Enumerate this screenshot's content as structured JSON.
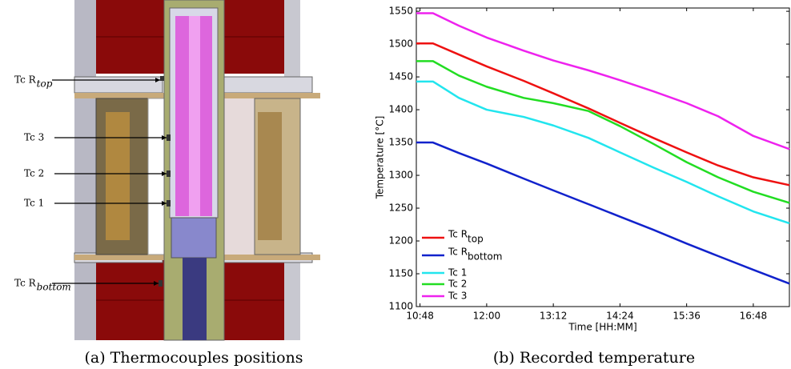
{
  "panel_a": {
    "caption": "(a) Thermocouples positions",
    "labels": [
      {
        "text": "Tc R",
        "sub": "top"
      },
      {
        "text": "Tc 3"
      },
      {
        "text": "Tc 2"
      },
      {
        "text": "Tc 1"
      },
      {
        "text": "Tc R",
        "sub": "bottom"
      }
    ]
  },
  "chart_data": {
    "type": "line",
    "caption": "(b) Recorded temperature",
    "xlabel": "Time [HH:MM]",
    "ylabel": "Temperature [°C]",
    "xlim": [
      644,
      1047
    ],
    "ylim": [
      1100,
      1555
    ],
    "xticks": [
      {
        "value": 648,
        "label": "10:48"
      },
      {
        "value": 720,
        "label": "12:00"
      },
      {
        "value": 792,
        "label": "13:12"
      },
      {
        "value": 864,
        "label": "14:24"
      },
      {
        "value": 936,
        "label": "15:36"
      },
      {
        "value": 1008,
        "label": "16:48"
      }
    ],
    "yticks": [
      1100,
      1150,
      1200,
      1250,
      1300,
      1350,
      1400,
      1450,
      1500,
      1550
    ],
    "grid": false,
    "legend": "lower left",
    "x": [
      644,
      662,
      690,
      720,
      760,
      792,
      830,
      864,
      900,
      936,
      970,
      1008,
      1047
    ],
    "series": [
      {
        "name": "Tc R",
        "name_sub": "top",
        "color": "#ee1111",
        "values": [
          1501,
          1501,
          1484,
          1466,
          1444,
          1425,
          1402,
          1380,
          1357,
          1335,
          1315,
          1297,
          1285
        ]
      },
      {
        "name": "Tc R",
        "name_sub": "bottom",
        "color": "#1122cc",
        "values": [
          1350,
          1350,
          1334,
          1318,
          1295,
          1277,
          1256,
          1237,
          1217,
          1196,
          1177,
          1156,
          1135
        ]
      },
      {
        "name": "Tc 1",
        "color": "#22e5ee",
        "values": [
          1443,
          1443,
          1418,
          1400,
          1389,
          1376,
          1357,
          1335,
          1312,
          1290,
          1268,
          1245,
          1227
        ]
      },
      {
        "name": "Tc 2",
        "color": "#22dd22",
        "values": [
          1474,
          1474,
          1452,
          1435,
          1418,
          1410,
          1398,
          1375,
          1348,
          1320,
          1297,
          1275,
          1258
        ]
      },
      {
        "name": "Tc 3",
        "color": "#ee22ee",
        "values": [
          1547,
          1547,
          1528,
          1510,
          1490,
          1475,
          1460,
          1445,
          1428,
          1410,
          1390,
          1360,
          1340
        ]
      }
    ]
  }
}
